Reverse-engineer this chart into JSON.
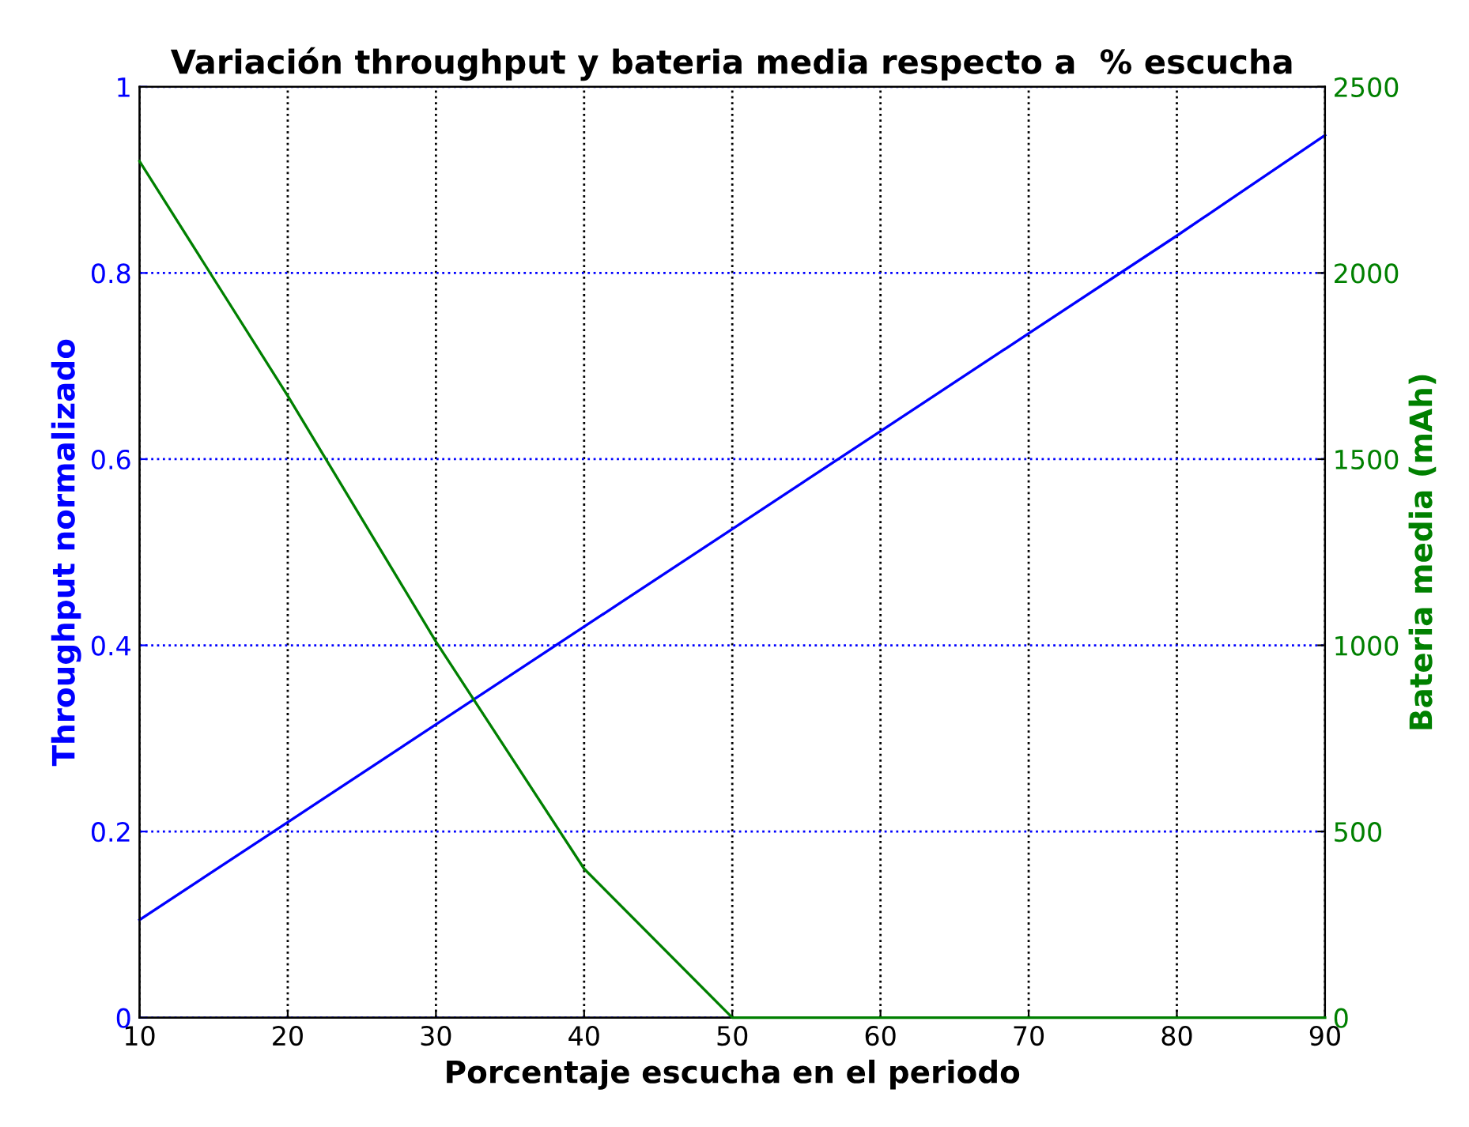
{
  "chart_data": {
    "type": "line",
    "title": "Variación throughput y bateria media respecto a  % escucha",
    "xlabel": "Porcentaje escucha en el periodo",
    "ylabel": "Throughput normalizado",
    "y2label": "Bateria media (mAh)",
    "x": [
      10,
      20,
      30,
      40,
      50,
      60,
      70,
      80,
      90
    ],
    "series": [
      {
        "color": "#0000ff",
        "values": [
          0.105,
          0.21,
          0.315,
          0.42,
          0.525,
          0.63,
          0.735,
          0.84,
          0.948
        ]
      },
      {
        "color": "#008000",
        "axis": "y2",
        "values": [
          2300,
          1670,
          1010,
          400,
          0,
          0,
          0,
          0,
          0
        ]
      }
    ],
    "xlim": [
      10,
      90
    ],
    "xticks": [
      10,
      20,
      30,
      40,
      50,
      60,
      70,
      80,
      90
    ],
    "ylim": [
      0,
      1
    ],
    "yticks": [
      0,
      0.2,
      0.4,
      0.6,
      0.8,
      1
    ],
    "y2lim": [
      0,
      2500
    ],
    "y2ticks": [
      0,
      500,
      1000,
      1500,
      2000,
      2500
    ],
    "grid": true,
    "line_style": "solid",
    "marker": "none"
  }
}
